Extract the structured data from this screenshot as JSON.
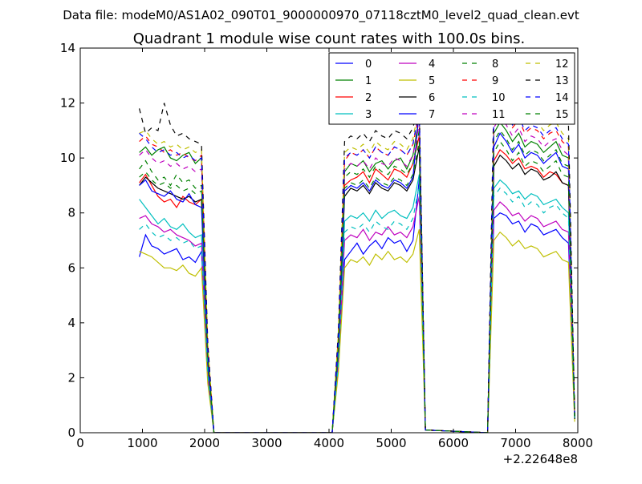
{
  "figure": {
    "suptitle": "Data file: modeM0/AS1A02_090T01_9000000970_07118cztM0_level2_quad_clean.evt"
  },
  "chart_data": {
    "type": "line",
    "title": "Quadrant 1 module wise count rates with 100.0s bins.",
    "xlabel": "",
    "ylabel": "",
    "x_offset_label": "+2.22648e8",
    "xlim": [
      0,
      8000
    ],
    "ylim": [
      0,
      14
    ],
    "xticks": [
      0,
      1000,
      2000,
      3000,
      4000,
      5000,
      6000,
      7000,
      8000
    ],
    "yticks": [
      0,
      2,
      4,
      6,
      8,
      10,
      12,
      14
    ],
    "legend_position": "top-right",
    "legend_columns": 4,
    "x": [
      950,
      1050,
      1150,
      1250,
      1350,
      1450,
      1550,
      1650,
      1750,
      1850,
      1950,
      2050,
      2150,
      4050,
      4150,
      4250,
      4350,
      4450,
      4550,
      4650,
      4750,
      4850,
      4950,
      5050,
      5150,
      5250,
      5350,
      5450,
      5550,
      6550,
      6650,
      6750,
      6850,
      6950,
      7050,
      7150,
      7250,
      7350,
      7450,
      7550,
      7650,
      7750,
      7850,
      7950
    ],
    "series": [
      {
        "name": "0",
        "color": "#0000ff",
        "dash": "solid",
        "values": [
          6.4,
          7.2,
          6.8,
          6.7,
          6.5,
          6.6,
          6.7,
          6.3,
          6.4,
          6.2,
          6.6,
          2.0,
          0.0,
          0.0,
          2.4,
          6.3,
          6.6,
          6.9,
          6.5,
          6.8,
          7.0,
          6.7,
          7.1,
          6.9,
          7.0,
          6.6,
          7.0,
          9.2,
          0.1,
          0.0,
          7.8,
          8.0,
          7.9,
          7.6,
          7.7,
          7.3,
          7.6,
          7.5,
          7.2,
          7.3,
          7.4,
          7.1,
          6.9,
          0.5
        ]
      },
      {
        "name": "1",
        "color": "#008000",
        "dash": "solid",
        "values": [
          10.2,
          10.4,
          10.1,
          10.3,
          10.4,
          10.0,
          9.9,
          10.1,
          10.2,
          9.8,
          10.0,
          3.0,
          0.0,
          0.0,
          3.4,
          9.5,
          9.8,
          9.7,
          9.9,
          9.5,
          9.8,
          9.9,
          9.6,
          9.9,
          10.0,
          9.6,
          10.1,
          11.5,
          0.1,
          0.0,
          10.9,
          11.3,
          11.0,
          10.6,
          10.9,
          10.4,
          10.6,
          10.5,
          10.2,
          10.4,
          10.6,
          10.1,
          10.0,
          0.6
        ]
      },
      {
        "name": "2",
        "color": "#ff0000",
        "dash": "solid",
        "values": [
          9.1,
          9.4,
          9.0,
          8.6,
          8.4,
          8.5,
          8.2,
          8.6,
          8.4,
          8.3,
          8.5,
          2.6,
          0.0,
          0.0,
          3.0,
          9.0,
          9.2,
          9.3,
          9.5,
          9.1,
          9.6,
          9.4,
          9.2,
          9.6,
          9.5,
          9.3,
          9.8,
          10.8,
          0.1,
          0.0,
          9.9,
          10.3,
          10.1,
          9.8,
          10.0,
          9.6,
          9.7,
          9.6,
          9.3,
          9.5,
          9.4,
          9.1,
          9.0,
          0.5
        ]
      },
      {
        "name": "3",
        "color": "#00bfbf",
        "dash": "solid",
        "values": [
          8.5,
          8.2,
          7.9,
          7.6,
          7.8,
          7.5,
          7.4,
          7.6,
          7.3,
          7.1,
          7.2,
          2.2,
          0.0,
          0.0,
          2.8,
          7.7,
          7.9,
          7.8,
          8.0,
          7.7,
          8.1,
          7.8,
          8.0,
          8.1,
          7.9,
          7.8,
          8.2,
          9.4,
          0.1,
          0.0,
          8.9,
          9.2,
          9.0,
          8.7,
          8.8,
          8.5,
          8.7,
          8.6,
          8.3,
          8.4,
          8.5,
          8.2,
          8.0,
          0.5
        ]
      },
      {
        "name": "4",
        "color": "#bf00bf",
        "dash": "solid",
        "values": [
          7.8,
          7.9,
          7.6,
          7.5,
          7.3,
          7.4,
          7.2,
          7.1,
          7.0,
          6.8,
          6.9,
          2.1,
          0.0,
          0.0,
          2.6,
          7.0,
          7.2,
          7.1,
          7.4,
          7.0,
          7.3,
          7.2,
          7.5,
          7.2,
          7.3,
          7.1,
          7.5,
          8.6,
          0.1,
          0.0,
          8.1,
          8.4,
          8.2,
          7.9,
          8.0,
          7.7,
          7.9,
          7.8,
          7.5,
          7.6,
          7.7,
          7.4,
          7.3,
          0.5
        ]
      },
      {
        "name": "5",
        "color": "#bfbf00",
        "dash": "solid",
        "values": [
          6.6,
          6.5,
          6.4,
          6.2,
          6.0,
          6.0,
          5.9,
          6.1,
          5.8,
          5.7,
          6.0,
          1.8,
          0.0,
          0.0,
          2.2,
          6.0,
          6.3,
          6.2,
          6.4,
          6.1,
          6.5,
          6.3,
          6.6,
          6.3,
          6.4,
          6.2,
          6.5,
          7.4,
          0.1,
          0.0,
          7.0,
          7.3,
          7.1,
          6.8,
          7.0,
          6.7,
          6.8,
          6.7,
          6.4,
          6.5,
          6.6,
          6.3,
          6.2,
          0.4
        ]
      },
      {
        "name": "6",
        "color": "#000000",
        "dash": "solid",
        "values": [
          9.0,
          9.3,
          9.1,
          8.9,
          8.8,
          8.7,
          8.6,
          8.5,
          8.6,
          8.4,
          8.5,
          2.6,
          0.0,
          0.0,
          3.0,
          8.6,
          8.9,
          8.8,
          9.0,
          8.7,
          9.1,
          8.9,
          8.8,
          9.1,
          9.0,
          8.8,
          9.2,
          10.4,
          0.1,
          0.0,
          9.7,
          10.1,
          9.9,
          9.6,
          9.8,
          9.4,
          9.6,
          9.5,
          9.2,
          9.3,
          9.5,
          9.1,
          9.0,
          0.5
        ]
      },
      {
        "name": "7",
        "color": "#0000ff",
        "dash": "solid",
        "values": [
          9.0,
          9.2,
          8.8,
          8.7,
          8.6,
          8.8,
          8.5,
          8.4,
          8.7,
          8.3,
          8.2,
          2.5,
          0.0,
          0.0,
          2.9,
          8.8,
          9.0,
          8.9,
          9.1,
          8.8,
          9.2,
          9.0,
          8.9,
          9.2,
          9.1,
          8.9,
          9.3,
          11.7,
          0.1,
          0.0,
          10.4,
          10.9,
          10.6,
          10.2,
          10.5,
          10.0,
          10.2,
          10.1,
          9.8,
          10.0,
          10.2,
          9.7,
          9.6,
          0.6
        ]
      },
      {
        "name": "8",
        "color": "#008000",
        "dash": "dashed",
        "values": [
          9.6,
          9.9,
          9.5,
          9.2,
          9.3,
          9.0,
          9.4,
          9.1,
          9.2,
          8.9,
          9.0,
          2.7,
          0.0,
          0.0,
          3.1,
          9.3,
          9.5,
          9.4,
          9.6,
          9.3,
          9.7,
          9.5,
          9.4,
          9.7,
          9.6,
          9.4,
          9.8,
          11.0,
          0.1,
          0.0,
          10.6,
          11.0,
          10.7,
          10.3,
          10.6,
          10.1,
          10.3,
          10.2,
          9.9,
          10.1,
          10.3,
          9.8,
          9.7,
          0.6
        ]
      },
      {
        "name": "9",
        "color": "#ff0000",
        "dash": "dashed",
        "values": [
          10.6,
          10.8,
          10.5,
          10.4,
          10.2,
          10.3,
          10.1,
          10.2,
          10.0,
          9.9,
          10.1,
          3.1,
          0.0,
          0.0,
          3.5,
          9.9,
          10.2,
          10.1,
          10.3,
          10.0,
          10.4,
          10.2,
          10.1,
          10.4,
          10.3,
          10.1,
          10.5,
          11.6,
          0.1,
          0.0,
          11.4,
          11.8,
          11.5,
          11.1,
          11.4,
          10.9,
          11.1,
          11.0,
          10.7,
          10.9,
          11.0,
          10.6,
          10.4,
          0.6
        ]
      },
      {
        "name": "10",
        "color": "#00bfbf",
        "dash": "dashed",
        "values": [
          7.4,
          7.6,
          7.3,
          7.1,
          7.2,
          7.0,
          7.1,
          6.9,
          7.0,
          6.7,
          6.8,
          2.1,
          0.0,
          0.0,
          2.5,
          7.3,
          7.5,
          7.4,
          7.6,
          7.3,
          7.7,
          7.5,
          7.4,
          7.7,
          7.6,
          7.4,
          7.8,
          9.0,
          0.1,
          0.0,
          8.6,
          8.9,
          8.7,
          8.4,
          8.6,
          8.2,
          8.4,
          8.3,
          8.0,
          8.2,
          8.3,
          8.0,
          7.8,
          0.5
        ]
      },
      {
        "name": "11",
        "color": "#bf00bf",
        "dash": "dashed",
        "values": [
          10.1,
          10.3,
          10.0,
          9.8,
          9.9,
          9.7,
          9.8,
          9.6,
          9.7,
          9.5,
          9.6,
          2.9,
          0.0,
          0.0,
          3.3,
          9.6,
          9.8,
          9.7,
          9.9,
          9.6,
          10.0,
          9.8,
          9.7,
          10.0,
          9.9,
          9.7,
          10.1,
          11.2,
          0.1,
          0.0,
          11.1,
          11.5,
          11.2,
          10.8,
          11.1,
          10.6,
          10.8,
          10.7,
          10.4,
          10.6,
          10.7,
          10.3,
          10.1,
          0.6
        ]
      },
      {
        "name": "12",
        "color": "#bfbf00",
        "dash": "dashed",
        "values": [
          10.9,
          11.0,
          10.7,
          10.5,
          10.6,
          10.4,
          10.5,
          10.3,
          10.4,
          10.2,
          10.3,
          3.2,
          0.0,
          0.0,
          3.6,
          10.2,
          10.4,
          10.3,
          10.5,
          10.2,
          10.6,
          10.4,
          10.3,
          10.6,
          10.5,
          10.3,
          10.7,
          11.9,
          0.1,
          0.0,
          11.7,
          12.1,
          11.8,
          11.4,
          11.7,
          11.2,
          11.4,
          11.3,
          11.0,
          11.2,
          11.3,
          10.9,
          10.7,
          0.6
        ]
      },
      {
        "name": "13",
        "color": "#000000",
        "dash": "dashed",
        "values": [
          11.8,
          10.9,
          11.1,
          11.0,
          12.0,
          11.2,
          10.8,
          10.9,
          10.7,
          10.6,
          10.5,
          3.3,
          0.0,
          0.0,
          3.7,
          10.6,
          10.8,
          10.7,
          10.9,
          10.6,
          11.0,
          10.8,
          10.7,
          11.0,
          10.9,
          10.7,
          11.1,
          12.0,
          0.1,
          0.0,
          12.3,
          12.9,
          12.6,
          12.0,
          12.3,
          11.7,
          12.0,
          11.9,
          11.5,
          11.7,
          11.9,
          11.4,
          11.2,
          0.7
        ]
      },
      {
        "name": "14",
        "color": "#0000ff",
        "dash": "dashed",
        "values": [
          10.9,
          10.7,
          10.4,
          10.2,
          10.3,
          10.1,
          10.2,
          10.0,
          10.1,
          9.9,
          10.0,
          3.0,
          0.0,
          0.0,
          3.4,
          10.0,
          10.2,
          10.1,
          10.3,
          10.0,
          10.4,
          10.2,
          10.1,
          10.4,
          10.3,
          10.1,
          10.5,
          11.8,
          0.1,
          0.0,
          11.5,
          11.9,
          11.6,
          11.2,
          11.5,
          11.0,
          11.2,
          11.1,
          10.8,
          11.0,
          11.1,
          10.7,
          10.5,
          0.6
        ]
      },
      {
        "name": "15",
        "color": "#008000",
        "dash": "dashed",
        "values": [
          9.3,
          9.5,
          9.2,
          9.0,
          9.1,
          8.9,
          9.0,
          8.8,
          8.9,
          8.7,
          8.8,
          2.7,
          0.0,
          0.0,
          3.1,
          8.9,
          9.1,
          9.0,
          9.2,
          8.9,
          9.3,
          9.1,
          9.0,
          9.3,
          9.2,
          9.0,
          9.4,
          10.6,
          0.1,
          0.0,
          10.2,
          10.6,
          10.3,
          9.9,
          10.2,
          9.7,
          9.9,
          9.8,
          9.5,
          9.7,
          9.9,
          9.4,
          9.3,
          0.6
        ]
      }
    ]
  }
}
